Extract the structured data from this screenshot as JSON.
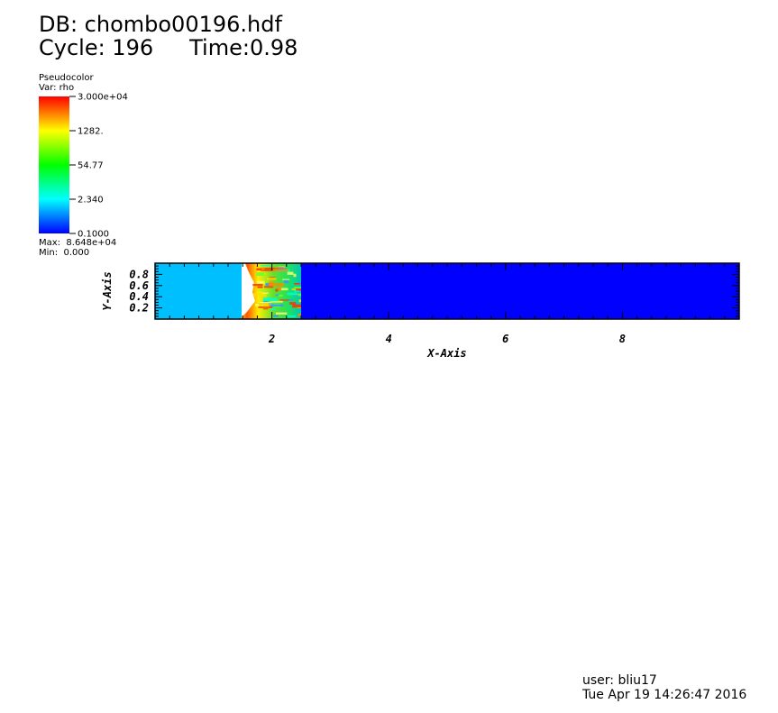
{
  "header": {
    "db": "DB: chombo00196.hdf",
    "cycle": "Cycle: 196",
    "time": "Time:0.98"
  },
  "legend": {
    "title": "Pseudocolor",
    "var": "Var: rho",
    "max": "Max:  8.648e+04",
    "min": "Min:  0.000",
    "ticks": [
      "3.000e+04",
      "1282.",
      "54.77",
      "2.340",
      "0.1000"
    ]
  },
  "footer": {
    "user": "user: bliu17",
    "date": "Tue Apr 19 14:26:47 2016"
  },
  "chart_data": {
    "type": "heatmap",
    "xlabel": "X-Axis",
    "ylabel": "Y-Axis",
    "xlim": [
      0,
      10
    ],
    "ylim": [
      0,
      1
    ],
    "x_ticks": [
      2,
      4,
      6,
      8
    ],
    "y_ticks": [
      0.2,
      0.4,
      0.6,
      0.8
    ],
    "colorbar": {
      "scale": "log",
      "range": [
        0.1,
        30000
      ],
      "colors": [
        "#0000ff",
        "#00ffff",
        "#00ff00",
        "#ffff00",
        "#ff0000"
      ]
    },
    "regions": [
      {
        "x_range": [
          0,
          1.45
        ],
        "color": "#00bfff"
      },
      {
        "x_range": [
          1.45,
          2.5
        ],
        "color": "#30e040"
      },
      {
        "x_range": [
          2.5,
          10
        ],
        "color": "#0000ff"
      }
    ]
  }
}
